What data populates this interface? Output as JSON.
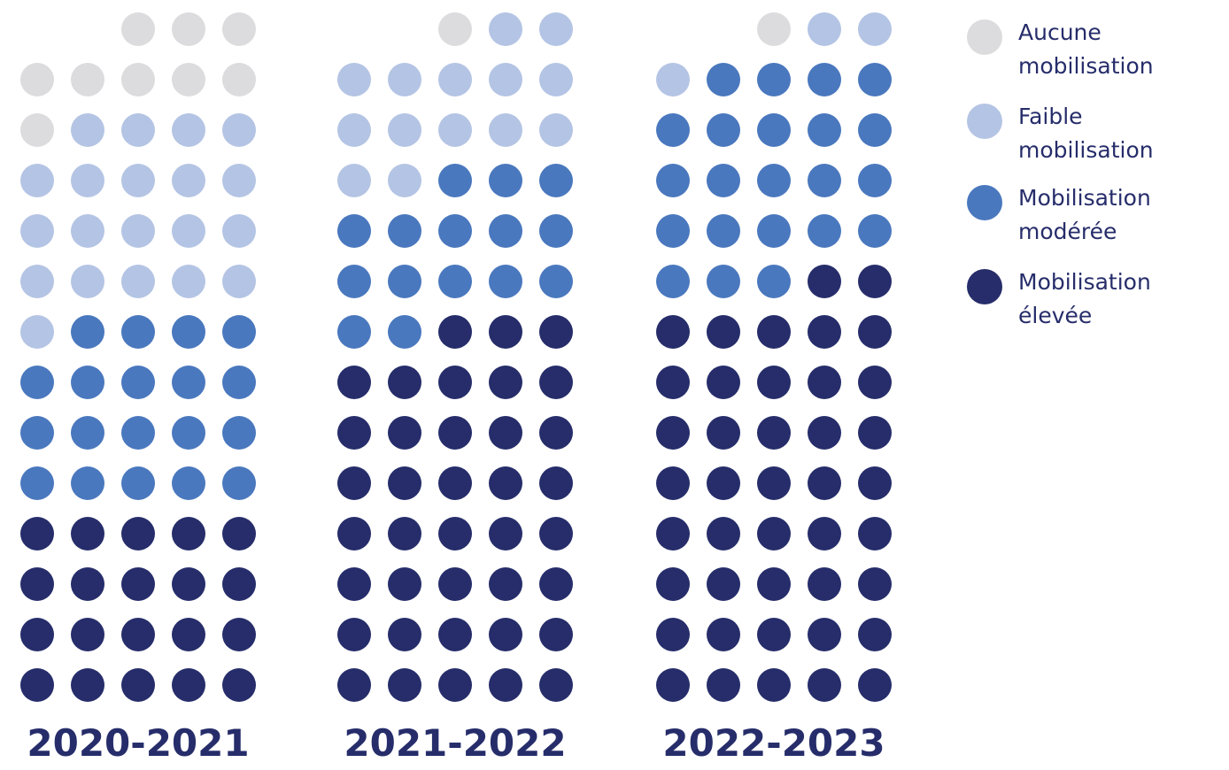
{
  "colors": {
    "aucune": "#dcdbdd",
    "faible": "#b4c4e4",
    "moderee": "#4a78be",
    "elevee": "#262d6a"
  },
  "legend": [
    {
      "key": "aucune",
      "line1": "Aucune",
      "line2": "mobilisation"
    },
    {
      "key": "faible",
      "line1": "Faible",
      "line2": "mobilisation"
    },
    {
      "key": "moderee",
      "line1": "Mobilisation",
      "line2": "modérée"
    },
    {
      "key": "elevee",
      "line1": "Mobilisation",
      "line2": "élevée"
    }
  ],
  "chart_data": {
    "type": "waffle",
    "categories": [
      "2020-2021",
      "2021-2022",
      "2022-2023"
    ],
    "units_per_group": 68,
    "series": [
      {
        "name": "Aucune mobilisation",
        "key": "aucune",
        "values": [
          9,
          1,
          1
        ]
      },
      {
        "name": "Faible mobilisation",
        "key": "faible",
        "values": [
          20,
          14,
          3
        ]
      },
      {
        "name": "Mobilisation modérée",
        "key": "moderee",
        "values": [
          19,
          15,
          22
        ]
      },
      {
        "name": "Mobilisation élevée",
        "key": "elevee",
        "values": [
          20,
          38,
          42
        ]
      }
    ]
  }
}
